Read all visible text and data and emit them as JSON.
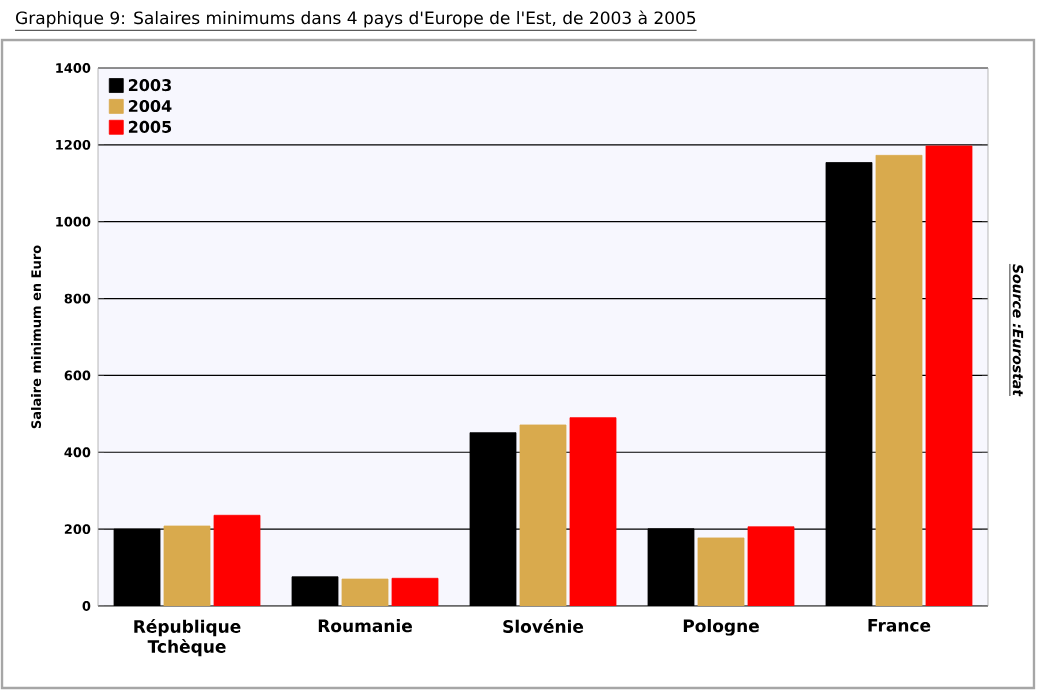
{
  "chart_data": {
    "type": "bar",
    "title": "Graphique 9: Salaires minimums dans 4 pays d'Europe de l'Est, de 2003 à 2005",
    "ylabel": "Salaire minimum en Euro",
    "annotations": [
      "Source :Eurostat"
    ],
    "categories": [
      "République Tchèque",
      "Roumanie",
      "Slovénie",
      "Pologne",
      "France"
    ],
    "series": [
      {
        "name": "2003",
        "color": "#000000",
        "values": [
          200,
          76,
          451,
          201,
          1154
        ]
      },
      {
        "name": "2004",
        "color": "#d9aa4d",
        "values": [
          208,
          70,
          471,
          177,
          1173
        ]
      },
      {
        "name": "2005",
        "color": "#ff0000",
        "values": [
          236,
          72,
          490,
          206,
          1197
        ]
      }
    ],
    "ylim": [
      0,
      1400
    ],
    "yticks": [
      0,
      200,
      400,
      600,
      800,
      1000,
      1200,
      1400
    ],
    "grid": "y",
    "legend": "top left"
  }
}
